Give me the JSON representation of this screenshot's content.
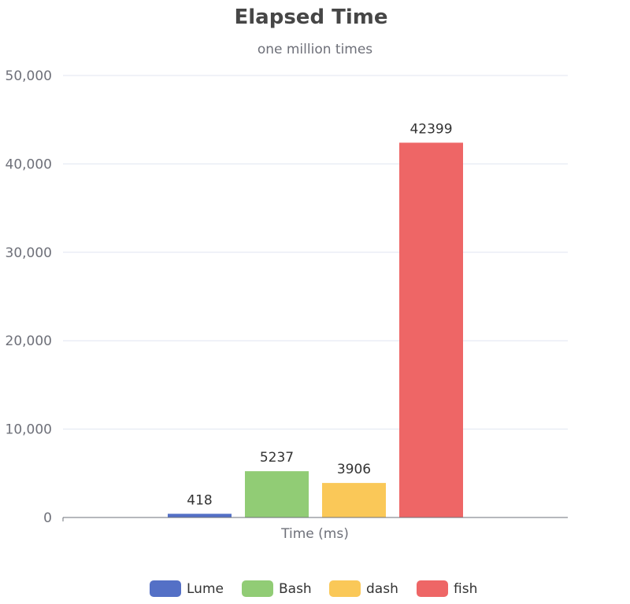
{
  "chart_data": {
    "type": "bar",
    "title": "Elapsed Time",
    "subtitle": "one million times",
    "xlabel": "Time (ms)",
    "ylabel": "",
    "ylim": [
      0,
      50000
    ],
    "yticks": [
      0,
      10000,
      20000,
      30000,
      40000,
      50000
    ],
    "ytick_labels": [
      "0",
      "10,000",
      "20,000",
      "30,000",
      "40,000",
      "50,000"
    ],
    "grid": true,
    "legend_position": "bottom",
    "series": [
      {
        "name": "Lume",
        "value": 418,
        "label": "418",
        "color": "#5470c6"
      },
      {
        "name": "Bash",
        "value": 5237,
        "label": "5237",
        "color": "#91cc75"
      },
      {
        "name": "dash",
        "value": 3906,
        "label": "3906",
        "color": "#fac858"
      },
      {
        "name": "fish",
        "value": 42399,
        "label": "42399",
        "color": "#ee6666"
      }
    ]
  }
}
